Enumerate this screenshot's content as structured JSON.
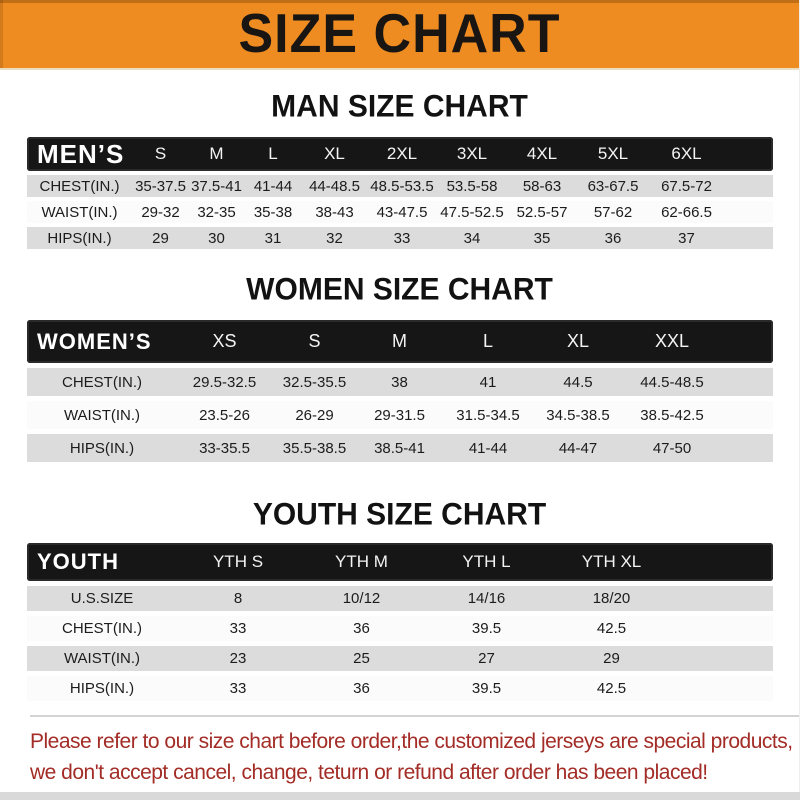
{
  "banner": {
    "title": "SIZE CHART",
    "bg_color": "#EE8C22",
    "text_color": "#191512"
  },
  "sections": [
    {
      "title": "MAN SIZE CHART",
      "header_label": "MEN’S",
      "columns": [
        "S",
        "M",
        "L",
        "XL",
        "2XL",
        "3XL",
        "4XL",
        "5XL",
        "6XL"
      ],
      "rows": [
        {
          "label": "CHEST(IN.)",
          "values": [
            "35-37.5",
            "37.5-41",
            "41-44",
            "44-48.5",
            "48.5-53.5",
            "53.5-58",
            "58-63",
            "63-67.5",
            "67.5-72"
          ]
        },
        {
          "label": "WAIST(IN.)",
          "values": [
            "29-32",
            "32-35",
            "35-38",
            "38-43",
            "43-47.5",
            "47.5-52.5",
            "52.5-57",
            "57-62",
            "62-66.5"
          ]
        },
        {
          "label": "HIPS(IN.)",
          "values": [
            "29",
            "30",
            "31",
            "32",
            "33",
            "34",
            "35",
            "36",
            "37"
          ]
        }
      ]
    },
    {
      "title": "WOMEN SIZE CHART",
      "header_label": "WOMEN’S",
      "columns": [
        "XS",
        "S",
        "M",
        "L",
        "XL",
        "XXL"
      ],
      "rows": [
        {
          "label": "CHEST(IN.)",
          "values": [
            "29.5-32.5",
            "32.5-35.5",
            "38",
            "41",
            "44.5",
            "44.5-48.5"
          ]
        },
        {
          "label": "WAIST(IN.)",
          "values": [
            "23.5-26",
            "26-29",
            "29-31.5",
            "31.5-34.5",
            "34.5-38.5",
            "38.5-42.5"
          ]
        },
        {
          "label": "HIPS(IN.)",
          "values": [
            "33-35.5",
            "35.5-38.5",
            "38.5-41",
            "41-44",
            "44-47",
            "47-50"
          ]
        }
      ]
    },
    {
      "title": "YOUTH SIZE CHART",
      "header_label": "YOUTH",
      "columns": [
        "YTH S",
        "YTH M",
        "YTH L",
        "YTH XL"
      ],
      "rows": [
        {
          "label": "U.S.SIZE",
          "values": [
            "8",
            "10/12",
            "14/16",
            "18/20"
          ]
        },
        {
          "label": "CHEST(IN.)",
          "values": [
            "33",
            "36",
            "39.5",
            "42.5"
          ]
        },
        {
          "label": "WAIST(IN.)",
          "values": [
            "23",
            "25",
            "27",
            "29"
          ]
        },
        {
          "label": "HIPS(IN.)",
          "values": [
            "33",
            "36",
            "39.5",
            "42.5"
          ]
        }
      ]
    }
  ],
  "footer": {
    "line1": "Please refer to our size chart before order,the customized jerseys are special products,",
    "line2": "we don't accept cancel, change, teturn or refund after order has been placed!",
    "text_color": "#A32C26"
  },
  "colors": {
    "banner_orange": "#EE8C22",
    "header_bar_black": "#161616",
    "row_gray": "#DCDCDC",
    "row_white": "#FBFBFB",
    "footer_red": "#A32C26",
    "bottom_strip_gray": "#D9D9D9"
  }
}
